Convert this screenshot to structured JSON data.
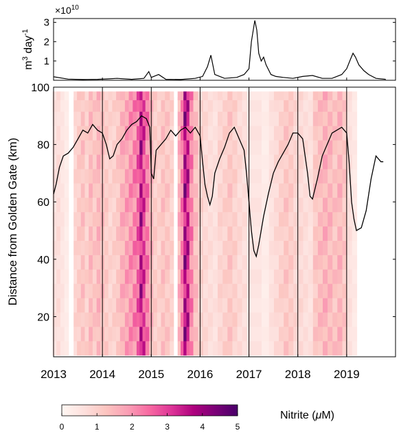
{
  "chart_data": [
    {
      "type": "line",
      "panel": "discharge",
      "xlim": [
        2013,
        2020.0
      ],
      "ylim": [
        0,
        3.2
      ],
      "y_exponent_label": "×10",
      "y_exponent_power": "10",
      "ylabel_base": "m",
      "ylabel_sup1": "3",
      "ylabel_mid": " day",
      "ylabel_sup2": "-1",
      "yticks": [
        1,
        2,
        3
      ],
      "ytick_labels": [
        "1",
        "2",
        "3"
      ],
      "color": "#000000",
      "series": [
        {
          "x": [
            2013.0,
            2013.3,
            2013.6,
            2013.9,
            2014.1,
            2014.3,
            2014.6,
            2014.85,
            2014.95,
            2015.0,
            2015.15,
            2015.3,
            2015.6,
            2015.9,
            2016.05,
            2016.15,
            2016.22,
            2016.3,
            2016.5,
            2016.75,
            2016.9,
            2017.0,
            2017.05,
            2017.12,
            2017.16,
            2017.2,
            2017.25,
            2017.3,
            2017.35,
            2017.45,
            2017.55,
            2017.7,
            2017.9,
            2018.1,
            2018.3,
            2018.5,
            2018.7,
            2018.9,
            2019.0,
            2019.08,
            2019.13,
            2019.18,
            2019.25,
            2019.35,
            2019.45,
            2019.6,
            2019.8
          ],
          "values": [
            0.18,
            0.06,
            0.04,
            0.05,
            0.07,
            0.1,
            0.05,
            0.1,
            0.45,
            0.15,
            0.3,
            0.05,
            0.04,
            0.1,
            0.2,
            0.7,
            1.3,
            0.3,
            0.1,
            0.15,
            0.3,
            0.6,
            2.0,
            3.1,
            2.6,
            1.4,
            1.0,
            1.2,
            0.8,
            0.3,
            0.2,
            0.15,
            0.1,
            0.2,
            0.25,
            0.1,
            0.1,
            0.3,
            0.6,
            1.1,
            1.4,
            1.2,
            0.8,
            0.5,
            0.3,
            0.1,
            0.05
          ]
        }
      ]
    },
    {
      "type": "heatmap",
      "panel": "nitrite",
      "xlim": [
        2013,
        2020.0
      ],
      "ylim": [
        6,
        100
      ],
      "xticks": [
        2013,
        2014,
        2015,
        2016,
        2017,
        2018,
        2019
      ],
      "xtick_labels": [
        "2013",
        "2014",
        "2015",
        "2016",
        "2017",
        "2018",
        "2019"
      ],
      "yticks": [
        20,
        40,
        60,
        80,
        100
      ],
      "ytick_labels": [
        "20",
        "40",
        "60",
        "80",
        "100"
      ],
      "ylabel": "Distance from Golden Gate  (km)",
      "year_lines": [
        2014,
        2015,
        2016,
        2017,
        2018,
        2019
      ],
      "color_scale": {
        "label": "Nitrite (",
        "label_mu": "μ",
        "label_unit": "M)",
        "min": 0,
        "max": 5,
        "ticks": [
          "0",
          "1",
          "2",
          "3",
          "4",
          "5"
        ],
        "colors": [
          "#fff7f3",
          "#fde0dd",
          "#fcc5c0",
          "#fa9fb5",
          "#f768a1",
          "#dd3497",
          "#ae017e",
          "#7a0177",
          "#49006a"
        ]
      },
      "cells": {
        "z_levels": [
          9,
          14,
          19,
          24,
          29,
          34,
          39,
          44,
          49,
          54,
          59,
          64,
          69,
          74,
          79,
          84,
          89,
          94,
          98
        ],
        "column_dates": [
          2013.02,
          2013.1,
          2013.18,
          2013.26,
          2013.35,
          2013.45,
          2013.52,
          2013.6,
          2013.68,
          2013.76,
          2013.84,
          2013.92,
          2014.0,
          2014.08,
          2014.16,
          2014.24,
          2014.32,
          2014.4,
          2014.5,
          2014.58,
          2014.66,
          2014.74,
          2014.8,
          2014.86,
          2014.92,
          2015.0,
          2015.08,
          2015.16,
          2015.24,
          2015.32,
          2015.42,
          2015.5,
          2015.58,
          2015.64,
          2015.7,
          2015.76,
          2015.82,
          2015.9,
          2016.0,
          2016.1,
          2016.2,
          2016.3,
          2016.4,
          2016.5,
          2016.6,
          2016.7,
          2016.8,
          2016.9,
          2017.0,
          2017.3,
          2017.45,
          2017.55,
          2017.65,
          2017.75,
          2017.85,
          2017.95,
          2018.05,
          2018.15,
          2018.25,
          2018.35,
          2018.45,
          2018.55,
          2018.65,
          2018.75,
          2018.85,
          2018.95,
          2019.05,
          2019.15
        ],
        "column_values": [
          0.6,
          0.7,
          0.5,
          0.3,
          0.0,
          0.9,
          1.1,
          1.3,
          1.0,
          1.4,
          1.2,
          1.5,
          1.3,
          1.1,
          0.9,
          1.0,
          1.2,
          1.6,
          1.8,
          2.0,
          2.2,
          2.6,
          3.6,
          3.0,
          2.3,
          1.5,
          1.1,
          1.0,
          1.3,
          1.2,
          1.0,
          0.0,
          1.6,
          2.2,
          3.8,
          3.4,
          2.2,
          1.4,
          1.0,
          0.8,
          0.7,
          0.6,
          0.9,
          1.0,
          1.2,
          1.0,
          0.8,
          0.7,
          0.5,
          0.3,
          0.6,
          0.8,
          1.0,
          1.2,
          1.1,
          0.9,
          0.8,
          0.7,
          0.6,
          1.2,
          1.4,
          1.6,
          1.5,
          1.3,
          1.5,
          1.2,
          0.6,
          0.4
        ]
      },
      "overlay_line": {
        "name": "",
        "x": [
          2013.0,
          2013.05,
          2013.12,
          2013.2,
          2013.3,
          2013.4,
          2013.5,
          2013.6,
          2013.7,
          2013.8,
          2013.9,
          2014.0,
          2014.08,
          2014.15,
          2014.22,
          2014.3,
          2014.4,
          2014.5,
          2014.6,
          2014.7,
          2014.8,
          2014.9,
          2014.97,
          2015.0,
          2015.05,
          2015.1,
          2015.2,
          2015.3,
          2015.4,
          2015.5,
          2015.6,
          2015.7,
          2015.8,
          2015.9,
          2016.0,
          2016.05,
          2016.1,
          2016.15,
          2016.2,
          2016.25,
          2016.3,
          2016.4,
          2016.5,
          2016.6,
          2016.7,
          2016.8,
          2016.9,
          2016.95,
          2017.0,
          2017.05,
          2017.1,
          2017.15,
          2017.2,
          2017.3,
          2017.4,
          2017.5,
          2017.6,
          2017.7,
          2017.8,
          2017.9,
          2018.0,
          2018.1,
          2018.2,
          2018.25,
          2018.3,
          2018.4,
          2018.5,
          2018.6,
          2018.7,
          2018.8,
          2018.9,
          2019.0,
          2019.05,
          2019.1,
          2019.15,
          2019.2,
          2019.3,
          2019.4,
          2019.5,
          2019.6,
          2019.7,
          2019.75
        ],
        "values": [
          62.7,
          66,
          72,
          76,
          77,
          79,
          82,
          85,
          84,
          87,
          85,
          84,
          80,
          75,
          76,
          80,
          82,
          85,
          87,
          88,
          90,
          89,
          86,
          70,
          68,
          78,
          80,
          82,
          85,
          83,
          85,
          86,
          84,
          86,
          83,
          74,
          66,
          62,
          59,
          62,
          70,
          75,
          79,
          84,
          86,
          82,
          78,
          70,
          60,
          50,
          43,
          41,
          45,
          55,
          63,
          70,
          74,
          77,
          80,
          84,
          84,
          82,
          70,
          62,
          61,
          68,
          76,
          80,
          84,
          85,
          86,
          84,
          74,
          60,
          54,
          50,
          51,
          57,
          68,
          76,
          74,
          74
        ]
      }
    }
  ]
}
